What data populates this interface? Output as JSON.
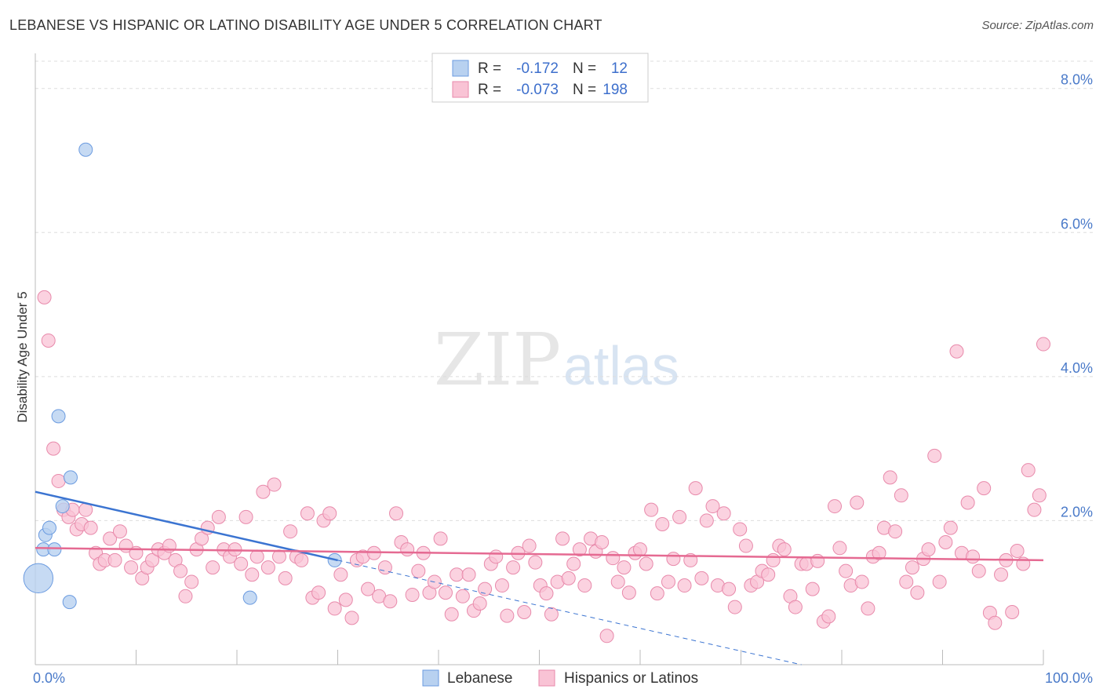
{
  "title": "LEBANESE VS HISPANIC OR LATINO DISABILITY AGE UNDER 5 CORRELATION CHART",
  "source": "Source: ZipAtlas.com",
  "watermark": {
    "part1": "ZIP",
    "part2": "atlas"
  },
  "legend": {
    "r_label": "R =",
    "n_label": "N =",
    "rows": [
      {
        "r": "-0.172",
        "n": "12",
        "fill": "#b8d1f0",
        "stroke": "#6b9be0"
      },
      {
        "r": "-0.073",
        "n": "198",
        "fill": "#f9c3d5",
        "stroke": "#e88aab"
      }
    ]
  },
  "bottom_legend": [
    "Lebanese",
    "Hispanics or Latinos"
  ],
  "colors": {
    "lebanese_fill": "#b8d1f0",
    "lebanese_stroke": "#6b9be0",
    "lebanese_line": "#3b74d1",
    "hispanic_fill": "#f9c3d5",
    "hispanic_stroke": "#e88aab",
    "hispanic_line": "#e56a92",
    "tick_text": "#4a7ac9",
    "grid": "#dddddd"
  },
  "chart_data": {
    "type": "scatter",
    "ylabel": "Disability Age Under 5",
    "xlim": [
      0,
      100
    ],
    "ylim": [
      0,
      8.4
    ],
    "y_ticks": [
      {
        "value": 2,
        "label": "2.0%"
      },
      {
        "value": 4,
        "label": "4.0%"
      },
      {
        "value": 6,
        "label": "6.0%"
      },
      {
        "value": 8,
        "label": "8.0%"
      }
    ],
    "x_tick_labels": [
      {
        "value": 0,
        "label": "0.0%"
      },
      {
        "value": 100,
        "label": "100.0%"
      }
    ],
    "series": [
      {
        "name": "Lebanese",
        "trend": {
          "x0": 0,
          "y0": 2.4,
          "x1": 30,
          "y1": 1.45,
          "dash_to_x": 76,
          "dash_to_y": 0.0
        },
        "points": [
          [
            0.3,
            1.2,
            2.2
          ],
          [
            0.8,
            1.6,
            1
          ],
          [
            1.0,
            1.8,
            1
          ],
          [
            1.4,
            1.9,
            1
          ],
          [
            1.9,
            1.6,
            1
          ],
          [
            2.3,
            3.45,
            1
          ],
          [
            2.7,
            2.2,
            1
          ],
          [
            3.4,
            0.87,
            1
          ],
          [
            3.5,
            2.6,
            1
          ],
          [
            5.0,
            7.15,
            1
          ],
          [
            21.3,
            0.93,
            1
          ],
          [
            29.7,
            1.45,
            1
          ]
        ]
      },
      {
        "name": "Hispanics or Latinos",
        "trend": {
          "x0": 0,
          "y0": 1.62,
          "x1": 100,
          "y1": 1.45
        },
        "points": [
          [
            0.9,
            5.1
          ],
          [
            1.3,
            4.5
          ],
          [
            1.8,
            3.0
          ],
          [
            2.3,
            2.55
          ],
          [
            2.8,
            2.15
          ],
          [
            3.3,
            2.05
          ],
          [
            3.7,
            2.15
          ],
          [
            4.1,
            1.88
          ],
          [
            4.6,
            1.95
          ],
          [
            5.0,
            2.15
          ],
          [
            5.5,
            1.9
          ],
          [
            6.0,
            1.55
          ],
          [
            6.4,
            1.4
          ],
          [
            6.9,
            1.45
          ],
          [
            7.4,
            1.75
          ],
          [
            7.9,
            1.45
          ],
          [
            8.4,
            1.85
          ],
          [
            9.0,
            1.65
          ],
          [
            9.5,
            1.35
          ],
          [
            10.0,
            1.55
          ],
          [
            10.6,
            1.2
          ],
          [
            11.1,
            1.35
          ],
          [
            11.6,
            1.45
          ],
          [
            12.2,
            1.6
          ],
          [
            12.8,
            1.55
          ],
          [
            13.3,
            1.65
          ],
          [
            13.9,
            1.45
          ],
          [
            14.4,
            1.3
          ],
          [
            14.9,
            0.95
          ],
          [
            15.5,
            1.15
          ],
          [
            16.0,
            1.6
          ],
          [
            16.5,
            1.75
          ],
          [
            17.1,
            1.9
          ],
          [
            17.6,
            1.35
          ],
          [
            18.2,
            2.05
          ],
          [
            18.7,
            1.6
          ],
          [
            19.3,
            1.5
          ],
          [
            19.8,
            1.6
          ],
          [
            20.4,
            1.4
          ],
          [
            20.9,
            2.05
          ],
          [
            21.5,
            1.25
          ],
          [
            22.0,
            1.5
          ],
          [
            22.6,
            2.4
          ],
          [
            23.1,
            1.35
          ],
          [
            23.7,
            2.5
          ],
          [
            24.2,
            1.5
          ],
          [
            24.8,
            1.2
          ],
          [
            25.3,
            1.85
          ],
          [
            25.9,
            1.5
          ],
          [
            26.4,
            1.45
          ],
          [
            27.0,
            2.1
          ],
          [
            27.5,
            0.93
          ],
          [
            28.1,
            1.0
          ],
          [
            28.6,
            2.0
          ],
          [
            29.2,
            2.1
          ],
          [
            29.7,
            0.78
          ],
          [
            30.3,
            1.25
          ],
          [
            30.8,
            0.9
          ],
          [
            31.4,
            0.65
          ],
          [
            31.9,
            1.45
          ],
          [
            32.5,
            1.5
          ],
          [
            33.0,
            1.05
          ],
          [
            33.6,
            1.55
          ],
          [
            34.1,
            0.95
          ],
          [
            34.7,
            1.35
          ],
          [
            35.2,
            0.88
          ],
          [
            35.8,
            2.1
          ],
          [
            36.3,
            1.7
          ],
          [
            36.9,
            1.6
          ],
          [
            37.4,
            0.97
          ],
          [
            38.0,
            1.3
          ],
          [
            38.5,
            1.55
          ],
          [
            39.1,
            1.0
          ],
          [
            39.6,
            1.15
          ],
          [
            40.2,
            1.75
          ],
          [
            40.7,
            1.0
          ],
          [
            41.3,
            0.7
          ],
          [
            41.8,
            1.25
          ],
          [
            42.4,
            0.95
          ],
          [
            43.0,
            1.25
          ],
          [
            43.5,
            0.75
          ],
          [
            44.1,
            0.85
          ],
          [
            44.6,
            1.05
          ],
          [
            45.2,
            1.4
          ],
          [
            45.7,
            1.5
          ],
          [
            46.3,
            1.1
          ],
          [
            46.8,
            0.68
          ],
          [
            47.4,
            1.35
          ],
          [
            47.9,
            1.55
          ],
          [
            48.5,
            0.73
          ],
          [
            49.0,
            1.65
          ],
          [
            49.6,
            1.42
          ],
          [
            50.1,
            1.1
          ],
          [
            50.7,
            0.99
          ],
          [
            51.2,
            0.7
          ],
          [
            51.8,
            1.15
          ],
          [
            52.3,
            1.75
          ],
          [
            52.9,
            1.2
          ],
          [
            53.4,
            1.4
          ],
          [
            54.0,
            1.6
          ],
          [
            54.5,
            1.1
          ],
          [
            55.1,
            1.75
          ],
          [
            55.6,
            1.57
          ],
          [
            56.2,
            1.7
          ],
          [
            56.7,
            0.4
          ],
          [
            57.3,
            1.48
          ],
          [
            57.8,
            1.15
          ],
          [
            58.4,
            1.35
          ],
          [
            58.9,
            1.0
          ],
          [
            59.5,
            1.55
          ],
          [
            60.0,
            1.6
          ],
          [
            60.6,
            1.4
          ],
          [
            61.1,
            2.15
          ],
          [
            61.7,
            0.99
          ],
          [
            62.2,
            1.95
          ],
          [
            62.8,
            1.15
          ],
          [
            63.3,
            1.47
          ],
          [
            63.9,
            2.05
          ],
          [
            64.4,
            1.1
          ],
          [
            65.0,
            1.45
          ],
          [
            65.5,
            2.45
          ],
          [
            66.1,
            1.2
          ],
          [
            66.6,
            2.0
          ],
          [
            67.2,
            2.2
          ],
          [
            67.7,
            1.1
          ],
          [
            68.3,
            2.1
          ],
          [
            68.8,
            1.05
          ],
          [
            69.4,
            0.8
          ],
          [
            69.9,
            1.88
          ],
          [
            70.5,
            1.65
          ],
          [
            71.0,
            1.1
          ],
          [
            71.6,
            1.15
          ],
          [
            72.1,
            1.3
          ],
          [
            72.7,
            1.25
          ],
          [
            73.2,
            1.45
          ],
          [
            73.8,
            1.65
          ],
          [
            74.3,
            1.6
          ],
          [
            74.9,
            0.95
          ],
          [
            75.4,
            0.8
          ],
          [
            76.0,
            1.4
          ],
          [
            76.5,
            1.4
          ],
          [
            77.1,
            1.05
          ],
          [
            77.6,
            1.44
          ],
          [
            78.2,
            0.6
          ],
          [
            78.7,
            0.67
          ],
          [
            79.3,
            2.2
          ],
          [
            79.8,
            1.62
          ],
          [
            80.4,
            1.3
          ],
          [
            80.9,
            1.1
          ],
          [
            81.5,
            2.25
          ],
          [
            82.0,
            1.15
          ],
          [
            82.6,
            0.78
          ],
          [
            83.1,
            1.5
          ],
          [
            83.7,
            1.55
          ],
          [
            84.2,
            1.9
          ],
          [
            84.8,
            2.6
          ],
          [
            85.3,
            1.85
          ],
          [
            85.9,
            2.35
          ],
          [
            86.4,
            1.15
          ],
          [
            87.0,
            1.35
          ],
          [
            87.5,
            1.0
          ],
          [
            88.1,
            1.47
          ],
          [
            88.6,
            1.6
          ],
          [
            89.2,
            2.9
          ],
          [
            89.7,
            1.15
          ],
          [
            90.3,
            1.7
          ],
          [
            90.8,
            1.9
          ],
          [
            91.4,
            4.35
          ],
          [
            91.9,
            1.55
          ],
          [
            92.5,
            2.25
          ],
          [
            93.0,
            1.5
          ],
          [
            93.6,
            1.3
          ],
          [
            94.1,
            2.45
          ],
          [
            94.7,
            0.72
          ],
          [
            95.2,
            0.58
          ],
          [
            95.8,
            1.25
          ],
          [
            96.3,
            1.45
          ],
          [
            96.9,
            0.73
          ],
          [
            97.4,
            1.58
          ],
          [
            98.0,
            1.4
          ],
          [
            98.5,
            2.7
          ],
          [
            99.1,
            2.15
          ],
          [
            99.6,
            2.35
          ],
          [
            100.0,
            4.45
          ]
        ]
      }
    ]
  }
}
